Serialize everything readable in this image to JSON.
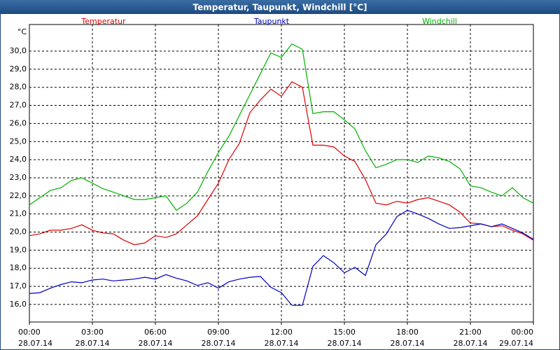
{
  "chart_data": {
    "type": "line",
    "title": "Temperatur, Taupunkt, Windchill [°C]",
    "y_unit": "°C",
    "grid": true,
    "legend": "top",
    "x": [
      0,
      0.5,
      1,
      1.5,
      2,
      2.5,
      3,
      3.5,
      4,
      4.5,
      5,
      5.5,
      6,
      6.5,
      7,
      7.5,
      8,
      8.5,
      9,
      9.5,
      10,
      10.5,
      11,
      11.5,
      12,
      12.5,
      13,
      13.5,
      14,
      14.5,
      15,
      15.5,
      16,
      16.5,
      17,
      17.5,
      18,
      18.5,
      19,
      19.5,
      20,
      20.5,
      21,
      21.5,
      22,
      22.5,
      23,
      23.5,
      24
    ],
    "xlim": [
      0,
      24
    ],
    "xticks": [
      {
        "value": 0,
        "label": "00:00"
      },
      {
        "value": 3,
        "label": "03:00"
      },
      {
        "value": 6,
        "label": "06:00"
      },
      {
        "value": 9,
        "label": "09:00"
      },
      {
        "value": 12,
        "label": "12:00"
      },
      {
        "value": 15,
        "label": "15:00"
      },
      {
        "value": 18,
        "label": "18:00"
      },
      {
        "value": 21,
        "label": "21:00"
      },
      {
        "value": 24,
        "label": "00:00"
      }
    ],
    "xtick_dates": [
      "28.07.14",
      "28.07.14",
      "28.07.14",
      "28.07.14",
      "28.07.14",
      "28.07.14",
      "28.07.14",
      "28.07.14",
      "29.07.14"
    ],
    "ylim": [
      15.03,
      31.47
    ],
    "yticks": [
      {
        "value": 16,
        "label": "16,0"
      },
      {
        "value": 17,
        "label": "17,0"
      },
      {
        "value": 18,
        "label": "18,0"
      },
      {
        "value": 19,
        "label": "19,0"
      },
      {
        "value": 20,
        "label": "20,0"
      },
      {
        "value": 21,
        "label": "21,0"
      },
      {
        "value": 22,
        "label": "22,0"
      },
      {
        "value": 23,
        "label": "23,0"
      },
      {
        "value": 24,
        "label": "24,0"
      },
      {
        "value": 25,
        "label": "25,0"
      },
      {
        "value": 26,
        "label": "26,0"
      },
      {
        "value": 27,
        "label": "27,0"
      },
      {
        "value": 28,
        "label": "28,0"
      },
      {
        "value": 29,
        "label": "29,0"
      },
      {
        "value": 30,
        "label": "30,0"
      }
    ],
    "series": [
      {
        "name": "Temperatur",
        "color": "#e00000",
        "values": [
          19.8,
          19.9,
          20.1,
          20.1,
          20.2,
          20.4,
          20.1,
          19.95,
          19.9,
          19.55,
          19.3,
          19.4,
          19.8,
          19.7,
          19.9,
          20.4,
          20.9,
          21.8,
          22.7,
          24.0,
          24.9,
          26.6,
          27.3,
          27.9,
          27.5,
          28.3,
          28.0,
          24.8,
          24.8,
          24.7,
          24.2,
          23.9,
          22.9,
          21.6,
          21.5,
          21.7,
          21.6,
          21.8,
          21.9,
          21.7,
          21.5,
          21.1,
          20.5,
          20.45,
          20.3,
          20.35,
          20.1,
          19.9,
          19.55
        ]
      },
      {
        "name": "Taupunkt",
        "color": "#0000c0",
        "values": [
          16.6,
          16.65,
          16.9,
          17.1,
          17.25,
          17.2,
          17.35,
          17.4,
          17.3,
          17.35,
          17.4,
          17.5,
          17.4,
          17.65,
          17.45,
          17.3,
          17.05,
          17.2,
          16.9,
          17.25,
          17.4,
          17.5,
          17.55,
          16.95,
          16.65,
          15.95,
          15.95,
          18.1,
          18.7,
          18.3,
          17.75,
          18.05,
          17.6,
          19.3,
          19.9,
          20.85,
          21.2,
          21.0,
          20.75,
          20.45,
          20.2,
          20.25,
          20.35,
          20.45,
          20.3,
          20.45,
          20.2,
          19.95,
          19.6
        ]
      },
      {
        "name": "Windchill",
        "color": "#00b000",
        "values": [
          21.5,
          21.9,
          22.3,
          22.45,
          22.85,
          23.0,
          22.7,
          22.4,
          22.2,
          22.0,
          21.8,
          21.8,
          21.9,
          22.0,
          21.2,
          21.6,
          22.2,
          23.35,
          24.4,
          25.3,
          26.45,
          27.6,
          28.75,
          29.9,
          29.65,
          30.4,
          30.1,
          26.55,
          26.65,
          26.65,
          26.2,
          25.7,
          24.5,
          23.55,
          23.75,
          24.0,
          24.0,
          23.85,
          24.2,
          24.1,
          23.9,
          23.5,
          22.55,
          22.45,
          22.2,
          22.0,
          22.45,
          21.9,
          21.6
        ]
      }
    ]
  }
}
